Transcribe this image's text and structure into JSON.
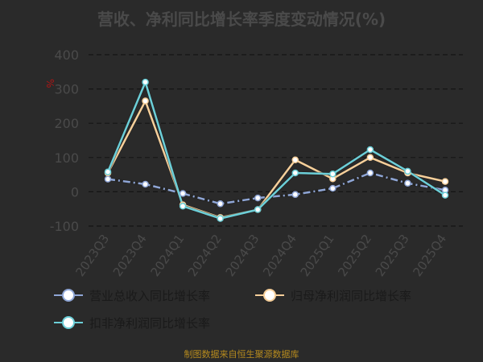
{
  "title": "营收、净利同比增长率季度变动情况(%)",
  "source": "制图数据来自恒生聚源数据库",
  "chart_data": {
    "type": "line",
    "title": "营收、净利同比增长率季度变动情况(%)",
    "y_unit_label": "%",
    "categories": [
      "2023Q3",
      "2023Q4",
      "2024Q1",
      "2024Q2",
      "2024Q3",
      "2024Q4",
      "2025Q1",
      "2025Q2",
      "2025Q3",
      "2025Q4"
    ],
    "ylim": [
      -100,
      400
    ],
    "yticks": [
      -100,
      0,
      100,
      200,
      300,
      400
    ],
    "grid": true,
    "legend_position": "bottom",
    "series": [
      {
        "name": "营业总收入同比增长率",
        "color": "#8fa6d6",
        "dashed": true,
        "values": [
          37,
          22,
          -5,
          -35,
          -18,
          -8,
          10,
          55,
          25,
          5
        ]
      },
      {
        "name": "归母净利润同比增长率",
        "color": "#f6cf9a",
        "dashed": false,
        "values": [
          55,
          265,
          -38,
          -75,
          -52,
          93,
          38,
          100,
          55,
          30
        ]
      },
      {
        "name": "扣非净利润同比增长率",
        "color": "#6ccfd8",
        "dashed": false,
        "values": [
          58,
          320,
          -42,
          -78,
          -52,
          55,
          52,
          123,
          60,
          -10
        ]
      }
    ]
  }
}
